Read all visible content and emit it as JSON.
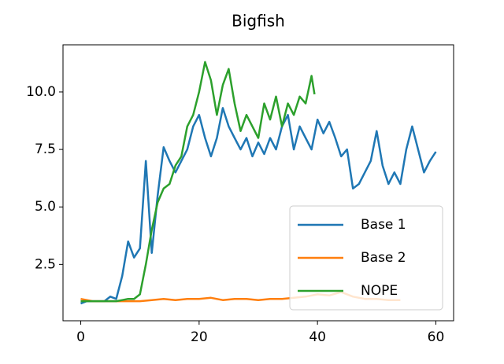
{
  "chart_data": {
    "type": "line",
    "title": "Bigfish",
    "xlim": [
      -3,
      63
    ],
    "xticks": [
      0,
      20,
      40,
      60
    ],
    "ylim": [
      0.05,
      12.05
    ],
    "yticks": [
      2.5,
      {
        "value": 5,
        "label": "5.0"
      },
      {
        "value": 7.5,
        "label": "7.5"
      },
      {
        "value": 10,
        "label": "10.0"
      }
    ],
    "legend": "lower right",
    "series": [
      {
        "name": "Base 1",
        "color": "#1f77b4",
        "x": [
          0,
          1,
          2,
          3,
          4,
          5,
          6,
          7,
          8,
          9,
          10,
          11,
          12,
          13,
          14,
          15,
          16,
          17,
          18,
          19,
          20,
          21,
          22,
          23,
          24,
          25,
          26,
          27,
          28,
          29,
          30,
          31,
          32,
          33,
          34,
          35,
          36,
          37,
          38,
          39,
          40,
          41,
          42,
          43,
          44,
          45,
          46,
          47,
          48,
          49,
          50,
          51,
          52,
          53,
          54,
          55,
          56,
          57,
          58,
          59,
          60
        ],
        "values": [
          0.8,
          0.9,
          0.9,
          0.9,
          0.9,
          1.1,
          1.0,
          2.0,
          3.5,
          2.8,
          3.2,
          7.0,
          3.0,
          5.5,
          7.6,
          7.0,
          6.5,
          7.0,
          7.5,
          8.5,
          9.0,
          8.0,
          7.2,
          8.0,
          9.3,
          8.5,
          8.0,
          7.5,
          8.0,
          7.2,
          7.8,
          7.3,
          8.0,
          7.5,
          8.5,
          9.0,
          7.5,
          8.5,
          8.0,
          7.5,
          8.8,
          8.2,
          8.7,
          8.0,
          7.2,
          7.5,
          5.8,
          6.0,
          6.5,
          7.0,
          8.3,
          6.8,
          6.0,
          6.5,
          6.0,
          7.5,
          8.5,
          7.5,
          6.5,
          7.0,
          7.4
        ]
      },
      {
        "name": "Base 2",
        "color": "#ff7f0e",
        "x": [
          0,
          2,
          4,
          6,
          8,
          10,
          12,
          14,
          16,
          18,
          20,
          22,
          24,
          26,
          28,
          30,
          32,
          34,
          36,
          38,
          40,
          42,
          44,
          46,
          48,
          50,
          52,
          54
        ],
        "values": [
          1.0,
          0.9,
          0.9,
          0.9,
          0.9,
          0.9,
          0.95,
          1.0,
          0.95,
          1.0,
          1.0,
          1.05,
          0.95,
          1.0,
          1.0,
          0.95,
          1.0,
          1.0,
          1.05,
          1.1,
          1.2,
          1.15,
          1.3,
          1.1,
          1.0,
          1.0,
          0.95,
          0.95
        ]
      },
      {
        "name": "NOPE",
        "color": "#2ca02c",
        "x": [
          0,
          1,
          2,
          3,
          4,
          5,
          6,
          7,
          8,
          9,
          10,
          11,
          12,
          13,
          14,
          15,
          16,
          17,
          18,
          19,
          20,
          21,
          22,
          23,
          24,
          25,
          26,
          27,
          28,
          29,
          30,
          31,
          32,
          33,
          34,
          35,
          36,
          37,
          38,
          39,
          39.5
        ],
        "values": [
          0.9,
          0.9,
          0.9,
          0.9,
          0.9,
          0.9,
          0.9,
          0.95,
          1.0,
          1.0,
          1.2,
          2.5,
          4.0,
          5.2,
          5.8,
          6.0,
          6.8,
          7.2,
          8.5,
          9.0,
          10.0,
          11.3,
          10.5,
          9.0,
          10.3,
          11.0,
          9.5,
          8.3,
          9.0,
          8.5,
          8.0,
          9.5,
          8.8,
          9.8,
          8.5,
          9.5,
          9.0,
          9.8,
          9.5,
          10.7,
          9.9
        ]
      }
    ]
  }
}
